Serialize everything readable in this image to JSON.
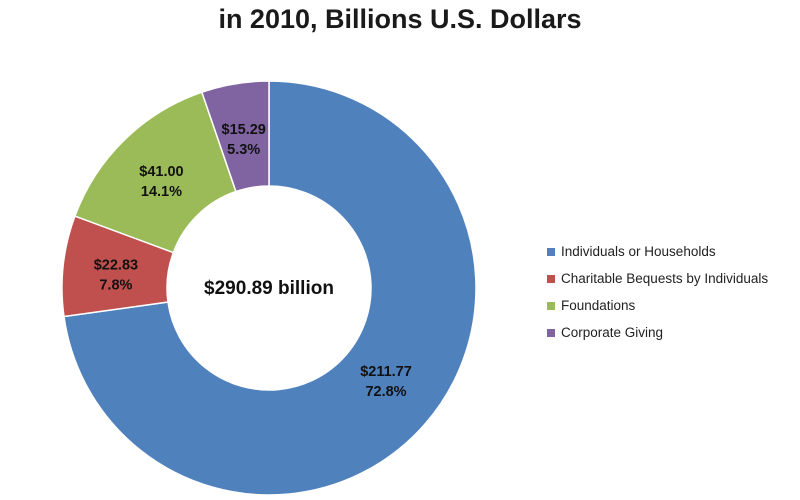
{
  "chart_data": {
    "type": "pie",
    "title": "in 2010, Billions U.S. Dollars",
    "center_label": "$290.89 billion",
    "legend_position": "right",
    "slices": [
      {
        "name": "Individuals or Households",
        "value": 211.77,
        "value_label": "$211.77",
        "percent_label": "72.8%",
        "color": "#4f81bd"
      },
      {
        "name": "Charitable Bequests by Individuals",
        "value": 22.83,
        "value_label": "$22.83",
        "percent_label": "7.8%",
        "color": "#c0504d"
      },
      {
        "name": "Foundations",
        "value": 41.0,
        "value_label": "$41.00",
        "percent_label": "14.1%",
        "color": "#9bbb59"
      },
      {
        "name": "Corporate Giving",
        "value": 15.29,
        "value_label": "$15.29",
        "percent_label": "5.3%",
        "color": "#8064a2"
      }
    ]
  }
}
